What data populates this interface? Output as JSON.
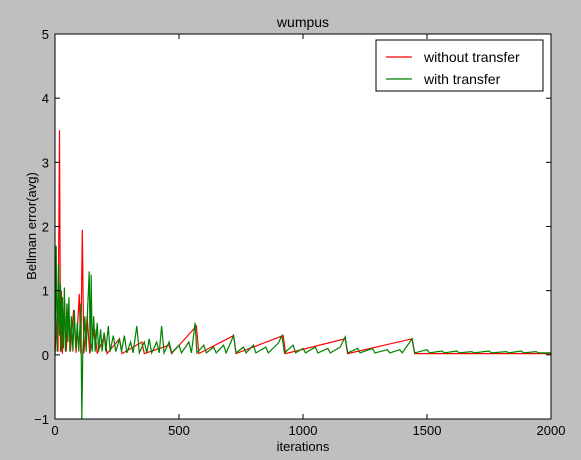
{
  "chart_data": {
    "type": "line",
    "title": "wumpus",
    "xlabel": "iterations",
    "ylabel": "Bellman error(avg)",
    "xlim": [
      0,
      2000
    ],
    "ylim": [
      -1,
      5
    ],
    "xticks": [
      0,
      500,
      1000,
      1500,
      2000
    ],
    "yticks": [
      -1,
      0,
      1,
      2,
      3,
      4,
      5
    ],
    "grid": false,
    "legend_position": "top-right",
    "series": [
      {
        "name": "without transfer",
        "color": "#ff0000",
        "points": [
          [
            0,
            0.0
          ],
          [
            8,
            0.6
          ],
          [
            12,
            0.05
          ],
          [
            18,
            3.5
          ],
          [
            22,
            0.05
          ],
          [
            26,
            1.0
          ],
          [
            30,
            0.02
          ],
          [
            38,
            0.9
          ],
          [
            45,
            0.05
          ],
          [
            55,
            0.8
          ],
          [
            62,
            0.05
          ],
          [
            75,
            0.7
          ],
          [
            85,
            0.03
          ],
          [
            98,
            0.95
          ],
          [
            104,
            0.02
          ],
          [
            110,
            1.95
          ],
          [
            116,
            0.02
          ],
          [
            130,
            0.6
          ],
          [
            140,
            0.02
          ],
          [
            160,
            0.4
          ],
          [
            170,
            0.02
          ],
          [
            200,
            0.3
          ],
          [
            210,
            0.02
          ],
          [
            260,
            0.25
          ],
          [
            270,
            0.02
          ],
          [
            350,
            0.2
          ],
          [
            360,
            0.02
          ],
          [
            460,
            0.15
          ],
          [
            470,
            0.02
          ],
          [
            570,
            0.45
          ],
          [
            580,
            0.02
          ],
          [
            720,
            0.3
          ],
          [
            730,
            0.02
          ],
          [
            920,
            0.3
          ],
          [
            930,
            0.02
          ],
          [
            1170,
            0.25
          ],
          [
            1180,
            0.02
          ],
          [
            1440,
            0.25
          ],
          [
            1450,
            0.02
          ],
          [
            2000,
            0.02
          ]
        ]
      },
      {
        "name": "with transfer",
        "color": "#008000",
        "points": [
          [
            0,
            0.05
          ],
          [
            5,
            1.7
          ],
          [
            9,
            0.05
          ],
          [
            14,
            1.4
          ],
          [
            18,
            0.3
          ],
          [
            22,
            1.1
          ],
          [
            26,
            0.05
          ],
          [
            30,
            0.9
          ],
          [
            34,
            0.1
          ],
          [
            38,
            1.05
          ],
          [
            42,
            0.05
          ],
          [
            48,
            0.8
          ],
          [
            52,
            0.2
          ],
          [
            56,
            0.9
          ],
          [
            60,
            0.05
          ],
          [
            66,
            0.6
          ],
          [
            72,
            0.05
          ],
          [
            78,
            0.7
          ],
          [
            84,
            0.1
          ],
          [
            90,
            0.5
          ],
          [
            96,
            0.05
          ],
          [
            100,
            0.4
          ],
          [
            104,
            0.8
          ],
          [
            108,
            -1.0
          ],
          [
            112,
            0.05
          ],
          [
            120,
            0.6
          ],
          [
            126,
            0.05
          ],
          [
            132,
            0.75
          ],
          [
            138,
            1.3
          ],
          [
            142,
            0.05
          ],
          [
            146,
            1.25
          ],
          [
            150,
            0.05
          ],
          [
            156,
            0.6
          ],
          [
            162,
            0.05
          ],
          [
            170,
            0.5
          ],
          [
            176,
            0.05
          ],
          [
            184,
            0.4
          ],
          [
            190,
            0.05
          ],
          [
            198,
            0.35
          ],
          [
            205,
            0.05
          ],
          [
            215,
            0.45
          ],
          [
            222,
            0.05
          ],
          [
            235,
            0.3
          ],
          [
            245,
            0.05
          ],
          [
            260,
            0.25
          ],
          [
            268,
            0.05
          ],
          [
            280,
            0.3
          ],
          [
            290,
            0.03
          ],
          [
            305,
            0.2
          ],
          [
            315,
            0.03
          ],
          [
            330,
            0.45
          ],
          [
            340,
            0.03
          ],
          [
            360,
            0.2
          ],
          [
            370,
            0.03
          ],
          [
            380,
            0.25
          ],
          [
            390,
            0.03
          ],
          [
            410,
            0.2
          ],
          [
            420,
            0.03
          ],
          [
            430,
            0.45
          ],
          [
            440,
            0.03
          ],
          [
            460,
            0.2
          ],
          [
            470,
            0.03
          ],
          [
            500,
            0.15
          ],
          [
            510,
            0.03
          ],
          [
            540,
            0.2
          ],
          [
            550,
            0.03
          ],
          [
            565,
            0.5
          ],
          [
            572,
            0.03
          ],
          [
            600,
            0.15
          ],
          [
            610,
            0.03
          ],
          [
            640,
            0.12
          ],
          [
            650,
            0.03
          ],
          [
            680,
            0.15
          ],
          [
            690,
            0.03
          ],
          [
            720,
            0.3
          ],
          [
            730,
            0.03
          ],
          [
            760,
            0.12
          ],
          [
            770,
            0.03
          ],
          [
            800,
            0.15
          ],
          [
            810,
            0.03
          ],
          [
            850,
            0.12
          ],
          [
            860,
            0.03
          ],
          [
            900,
            0.18
          ],
          [
            915,
            0.3
          ],
          [
            925,
            0.03
          ],
          [
            960,
            0.15
          ],
          [
            970,
            0.03
          ],
          [
            1000,
            0.1
          ],
          [
            1010,
            0.03
          ],
          [
            1050,
            0.12
          ],
          [
            1060,
            0.03
          ],
          [
            1100,
            0.1
          ],
          [
            1110,
            0.03
          ],
          [
            1150,
            0.12
          ],
          [
            1170,
            0.28
          ],
          [
            1180,
            0.03
          ],
          [
            1220,
            0.1
          ],
          [
            1230,
            0.03
          ],
          [
            1280,
            0.1
          ],
          [
            1290,
            0.03
          ],
          [
            1340,
            0.08
          ],
          [
            1350,
            0.03
          ],
          [
            1390,
            0.08
          ],
          [
            1400,
            0.03
          ],
          [
            1440,
            0.25
          ],
          [
            1450,
            0.03
          ],
          [
            1500,
            0.08
          ],
          [
            1510,
            0.03
          ],
          [
            1560,
            0.06
          ],
          [
            1570,
            0.03
          ],
          [
            1620,
            0.06
          ],
          [
            1630,
            0.03
          ],
          [
            1680,
            0.05
          ],
          [
            1690,
            0.03
          ],
          [
            1750,
            0.06
          ],
          [
            1760,
            0.03
          ],
          [
            1820,
            0.05
          ],
          [
            1830,
            0.03
          ],
          [
            1880,
            0.06
          ],
          [
            1890,
            0.03
          ],
          [
            1940,
            0.05
          ],
          [
            1950,
            0.03
          ],
          [
            2000,
            0.03
          ]
        ]
      }
    ]
  }
}
